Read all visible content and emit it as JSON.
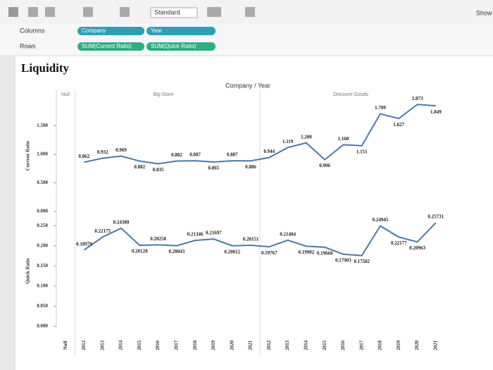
{
  "toolbar": {
    "fit": "Standard",
    "show_me": "Show"
  },
  "shelves": {
    "columns_label": "Columns",
    "columns": [
      "Company",
      "Year"
    ],
    "rows_label": "Rows",
    "rows": [
      "SUM(Current Ratio)",
      "SUM(Quick Ratio)"
    ]
  },
  "title": "Liquidity",
  "header": "Company / Year",
  "groups": [
    "Null",
    "Big Store",
    "Discount Goods"
  ],
  "chart_data": [
    {
      "type": "line",
      "ylabel": "Current Ratio",
      "color": "#4e79a7",
      "values": [
        null,
        0.862,
        0.932,
        0.969,
        0.882,
        0.835,
        0.882,
        0.887,
        0.865,
        0.887,
        0.886,
        0.944,
        1.119,
        1.2,
        0.906,
        1.168,
        1.151,
        1.709,
        1.627,
        1.873,
        1.849
      ],
      "value_labels": [
        null,
        "0.862",
        "0.932",
        "0.969",
        "0.882",
        "0.835",
        "0.882",
        "0.887",
        "0.865",
        "0.887",
        "0.886",
        "0.944",
        "1.119",
        "1.200",
        "0.906",
        "1.168",
        "1.151",
        "1.709",
        "1.627",
        "1.873",
        "1.849"
      ],
      "ylim": [
        0,
        1.95
      ],
      "yticks": [
        {
          "value": 0,
          "label": "0.000"
        },
        {
          "value": 0.5,
          "label": "0.500"
        },
        {
          "value": 1,
          "label": "1.000"
        },
        {
          "value": 1.5,
          "label": "1.500"
        }
      ]
    },
    {
      "type": "line",
      "ylabel": "Quick Ratio",
      "color": "#4e79a7",
      "categories": [
        "Null",
        "2012",
        "2013",
        "2014",
        "2015",
        "2016",
        "2017",
        "2018",
        "2019",
        "2020",
        "2021",
        "2012",
        "2013",
        "2014",
        "2015",
        "2016",
        "2017",
        "2018",
        "2019",
        "2020",
        "2021"
      ],
      "values": [
        null,
        0.18979,
        0.22175,
        0.2438,
        0.20128,
        0.20258,
        0.20043,
        0.21346,
        0.21697,
        0.20012,
        0.20151,
        0.19767,
        0.21404,
        0.19902,
        0.1966,
        0.17903,
        0.17582,
        0.24945,
        0.22177,
        0.20963,
        0.25731
      ],
      "value_labels": [
        null,
        "0.18979",
        "0.22175",
        "0.24380",
        "0.20128",
        "0.20258",
        "0.20043",
        "0.21346",
        "0.21697",
        "0.20012",
        "0.20151",
        "0.19767",
        "0.21404",
        "0.19902",
        "0.19660",
        "0.17903",
        "0.17582",
        "0.24945",
        "0.22177",
        "0.20963",
        "0.25731"
      ],
      "ylim": [
        0,
        0.275
      ],
      "yticks": [
        {
          "value": 0,
          "label": "0.000"
        },
        {
          "value": 0.05,
          "label": "0.050"
        },
        {
          "value": 0.1,
          "label": "0.100"
        },
        {
          "value": 0.15,
          "label": "0.150"
        },
        {
          "value": 0.2,
          "label": "0.200"
        },
        {
          "value": 0.25,
          "label": "0.250"
        }
      ]
    }
  ]
}
